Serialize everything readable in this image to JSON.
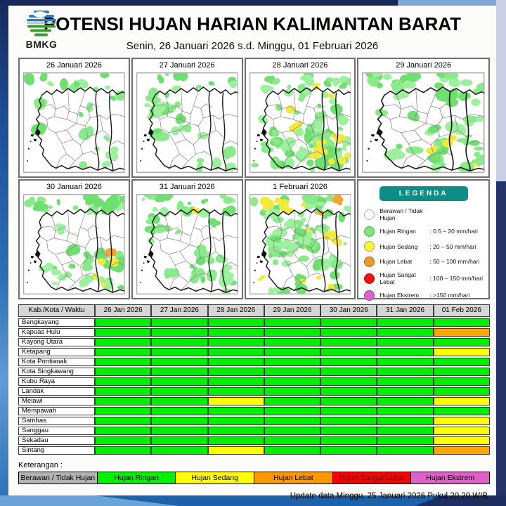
{
  "header": {
    "logo_text": "BMKG",
    "title": "POTENSI HUJAN HARIAN KALIMANTAN BARAT",
    "subtitle": "Senin, 26 Januari 2026 s.d. Minggu, 01 Februari 2026"
  },
  "panels": [
    {
      "label": "26 Januari 2026",
      "seed": 11,
      "rain": [
        {
          "zone": "top",
          "n": 8,
          "color": "green"
        },
        {
          "zone": "ne",
          "n": 4,
          "color": "green"
        },
        {
          "zone": "se",
          "n": 7,
          "color": "green"
        },
        {
          "zone": "west",
          "n": 3,
          "color": "green"
        },
        {
          "zone": "mid",
          "n": 2,
          "color": "green"
        }
      ]
    },
    {
      "label": "27 Januari 2026",
      "seed": 22,
      "rain": [
        {
          "zone": "top",
          "n": 10,
          "color": "green"
        },
        {
          "zone": "nw",
          "n": 12,
          "color": "green"
        },
        {
          "zone": "west",
          "n": 4,
          "color": "green"
        },
        {
          "zone": "se",
          "n": 6,
          "color": "green"
        },
        {
          "zone": "mid",
          "n": 4,
          "color": "green"
        }
      ]
    },
    {
      "label": "28 Januari 2026",
      "seed": 33,
      "rain": [
        {
          "zone": "all",
          "n": 46,
          "color": "green"
        },
        {
          "zone": "top",
          "n": 10,
          "color": "green"
        },
        {
          "zone": "se",
          "n": 16,
          "color": "green"
        },
        {
          "zone": "se",
          "n": 10,
          "color": "yellow"
        },
        {
          "zone": "mid",
          "n": 3,
          "color": "yellow"
        },
        {
          "zone": "sw",
          "n": 8,
          "color": "green"
        },
        {
          "zone": "ne",
          "n": 2,
          "color": "yellow"
        }
      ]
    },
    {
      "label": "29 Januari 2026",
      "seed": 44,
      "rain": [
        {
          "zone": "top",
          "n": 16,
          "color": "green"
        },
        {
          "zone": "ne",
          "n": 8,
          "color": "green"
        },
        {
          "zone": "se",
          "n": 18,
          "color": "green"
        },
        {
          "zone": "s",
          "n": 6,
          "color": "green"
        },
        {
          "zone": "nw",
          "n": 5,
          "color": "green"
        },
        {
          "zone": "se",
          "n": 3,
          "color": "yellow"
        },
        {
          "zone": "e",
          "n": 6,
          "color": "green"
        }
      ]
    },
    {
      "label": "30 Januari 2026",
      "seed": 55,
      "rain": [
        {
          "zone": "top",
          "n": 12,
          "color": "green"
        },
        {
          "zone": "ne",
          "n": 6,
          "color": "green"
        },
        {
          "zone": "se",
          "n": 16,
          "color": "green"
        },
        {
          "zone": "s",
          "n": 6,
          "color": "green"
        },
        {
          "zone": "se",
          "n": 5,
          "color": "yellow"
        },
        {
          "zone": "se",
          "n": 1,
          "color": "orange"
        },
        {
          "zone": "sw",
          "n": 3,
          "color": "green"
        },
        {
          "zone": "mid",
          "n": 2,
          "color": "green"
        }
      ]
    },
    {
      "label": "31 Januari 2026",
      "seed": 66,
      "rain": [
        {
          "zone": "top",
          "n": 12,
          "color": "green"
        },
        {
          "zone": "nw",
          "n": 8,
          "color": "green"
        },
        {
          "zone": "se",
          "n": 14,
          "color": "green"
        },
        {
          "zone": "s",
          "n": 4,
          "color": "green"
        },
        {
          "zone": "top",
          "n": 1,
          "color": "yellow"
        },
        {
          "zone": "ne",
          "n": 4,
          "color": "green"
        }
      ]
    },
    {
      "label": "1 Februari 2026",
      "seed": 77,
      "rain": [
        {
          "zone": "all",
          "n": 60,
          "color": "green"
        },
        {
          "zone": "top",
          "n": 6,
          "color": "yellow"
        },
        {
          "zone": "all",
          "n": 8,
          "color": "yellow"
        },
        {
          "zone": "top",
          "n": 2,
          "color": "orange"
        },
        {
          "zone": "mid",
          "n": 8,
          "color": "green"
        },
        {
          "zone": "ne",
          "n": 1,
          "color": "orange"
        }
      ]
    }
  ],
  "map_colors": {
    "green": [
      "#8ae98a",
      "#6fdf6f",
      "#9df09d"
    ],
    "yellow": "#f3e93a",
    "orange": "#f6a42c"
  },
  "legend": {
    "title": "LEGENDA",
    "items": [
      {
        "name": "Berawan / Tidak Hujan",
        "range": "",
        "color": "#ffffff"
      },
      {
        "name": "Hujan Ringan",
        "range": ": 0.5 – 20 mm/hari",
        "color": "#7ce87c"
      },
      {
        "name": "Hujan Sedang",
        "range": ": 20 – 50 mm/hari",
        "color": "#f6f63c"
      },
      {
        "name": "Hujan Lebat",
        "range": ": 50 – 100 mm/hari",
        "color": "#ef9a2e"
      },
      {
        "name": "Hujan Sangat Lebat",
        "range": ": 100 – 150 mm/hari",
        "color": "#ee1111"
      },
      {
        "name": "Hujan Ekstrem",
        "range": ": >150 mm/hari",
        "color": "#d966cc"
      }
    ]
  },
  "table": {
    "corner": "Kab./Kota / Waktu",
    "columns": [
      "26 Jan 2026",
      "27 Jan 2026",
      "28 Jan 2026",
      "29 Jan 2026",
      "30 Jan 2026",
      "31 Jan 2026",
      "01 Feb 2026"
    ],
    "cell_colors": {
      "G": "#00ef00",
      "Y": "#ffff00",
      "O": "#ffa500"
    },
    "rows": [
      {
        "name": "Bengkayang",
        "cells": [
          "G",
          "G",
          "G",
          "G",
          "G",
          "G",
          "G"
        ]
      },
      {
        "name": "Kapuas Hulu",
        "cells": [
          "G",
          "G",
          "G",
          "G",
          "G",
          "G",
          "O"
        ]
      },
      {
        "name": "Kayong Utara",
        "cells": [
          "G",
          "G",
          "G",
          "G",
          "G",
          "G",
          "G"
        ]
      },
      {
        "name": "Ketapang",
        "cells": [
          "G",
          "G",
          "G",
          "G",
          "G",
          "G",
          "Y"
        ]
      },
      {
        "name": "Kota Pontianak",
        "cells": [
          "G",
          "G",
          "G",
          "G",
          "G",
          "G",
          "G"
        ]
      },
      {
        "name": "Kota Singkawang",
        "cells": [
          "G",
          "G",
          "G",
          "G",
          "G",
          "G",
          "G"
        ]
      },
      {
        "name": "Kubu Raya",
        "cells": [
          "G",
          "G",
          "G",
          "G",
          "G",
          "G",
          "G"
        ]
      },
      {
        "name": "Landak",
        "cells": [
          "G",
          "G",
          "G",
          "G",
          "G",
          "G",
          "G"
        ]
      },
      {
        "name": "Melawi",
        "cells": [
          "G",
          "G",
          "Y",
          "G",
          "G",
          "G",
          "Y"
        ]
      },
      {
        "name": "Mempawah",
        "cells": [
          "G",
          "G",
          "G",
          "G",
          "G",
          "G",
          "G"
        ]
      },
      {
        "name": "Sambas",
        "cells": [
          "G",
          "G",
          "G",
          "G",
          "G",
          "G",
          "Y"
        ]
      },
      {
        "name": "Sanggau",
        "cells": [
          "G",
          "G",
          "G",
          "G",
          "G",
          "G",
          "Y"
        ]
      },
      {
        "name": "Sekadau",
        "cells": [
          "G",
          "G",
          "G",
          "G",
          "G",
          "G",
          "Y"
        ]
      },
      {
        "name": "Sintang",
        "cells": [
          "G",
          "G",
          "Y",
          "G",
          "G",
          "G",
          "O"
        ]
      }
    ]
  },
  "keterangan": {
    "label": "Keterangan :",
    "segments": [
      {
        "label": "Berawan / Tidak Hujan",
        "color": "#b3b3b3",
        "text_color": "#000000"
      },
      {
        "label": "Hujan Ringan",
        "color": "#00f000",
        "text_color": "#000000"
      },
      {
        "label": "Hujan Sedang",
        "color": "#ffff00",
        "text_color": "#000000"
      },
      {
        "label": "Hujan Lebat",
        "color": "#ff9800",
        "text_color": "#000000"
      },
      {
        "label": "Hujan Sangat Lebat",
        "color": "#f60000",
        "text_color": "#7a1212"
      },
      {
        "label": "Hujan Ekstrem",
        "color": "#e05ec7",
        "text_color": "#000000"
      }
    ]
  },
  "footer": {
    "update_text": "Update data Minggu, 25 Januari 2026 Pukul 20.20 WIB"
  }
}
